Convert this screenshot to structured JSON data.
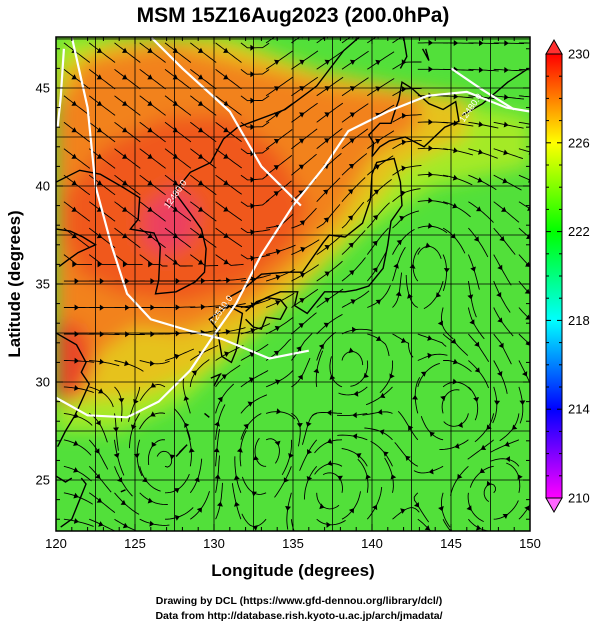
{
  "chart_data": {
    "type": "heatmap",
    "title": "MSM 15Z16Aug2023 (200.0hPa)",
    "xlabel": "Longitude (degrees)",
    "ylabel": "Latitude  (degrees)",
    "xlim": [
      120,
      150
    ],
    "ylim": [
      22.4,
      47.6
    ],
    "xticks": [
      120,
      125,
      130,
      135,
      140,
      145,
      150
    ],
    "yticks": [
      25,
      30,
      35,
      40,
      45
    ],
    "grid": true,
    "colorbar": {
      "min": 210,
      "max": 230,
      "ticks": [
        210,
        214,
        218,
        222,
        226,
        230
      ],
      "colors": [
        "#ff00ff",
        "#0000ff",
        "#00ffff",
        "#00ff00",
        "#ffff00",
        "#ff0000"
      ]
    },
    "contour_labels": [
      {
        "text": "12480.0",
        "lon": 127.7,
        "lat": 39.5
      },
      {
        "text": "12510.0",
        "lon": 130.6,
        "lat": 33.6
      },
      {
        "text": "12480.0",
        "lon": 146.4,
        "lat": 43.9
      }
    ],
    "field_maxima": [
      {
        "value": 229,
        "lon": 126.5,
        "lat": 37.5
      },
      {
        "value": 227,
        "lon": 120.5,
        "lat": 31.0
      }
    ],
    "credits": [
      "Drawing by DCL (https://www.gfd-dennou.org/library/dcl/)",
      "Data from http://database.rish.kyoto-u.ac.jp/arch/jmadata/"
    ]
  }
}
